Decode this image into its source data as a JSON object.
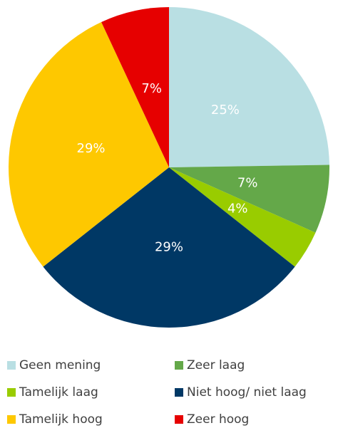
{
  "chart_data": {
    "type": "pie",
    "categories": [
      "Geen mening",
      "Zeer laag",
      "Tamelijk laag",
      "Niet hoog/ niet laag",
      "Tamelijk hoog",
      "Zeer hoog"
    ],
    "values": [
      25,
      7,
      4,
      29,
      29,
      7
    ],
    "value_labels": [
      "25%",
      "7%",
      "4%",
      "29%",
      "29%",
      "7%"
    ],
    "colors": [
      "#b9dfe3",
      "#64a849",
      "#99cc00",
      "#003865",
      "#fec800",
      "#e60000"
    ],
    "legend": "bottom"
  }
}
